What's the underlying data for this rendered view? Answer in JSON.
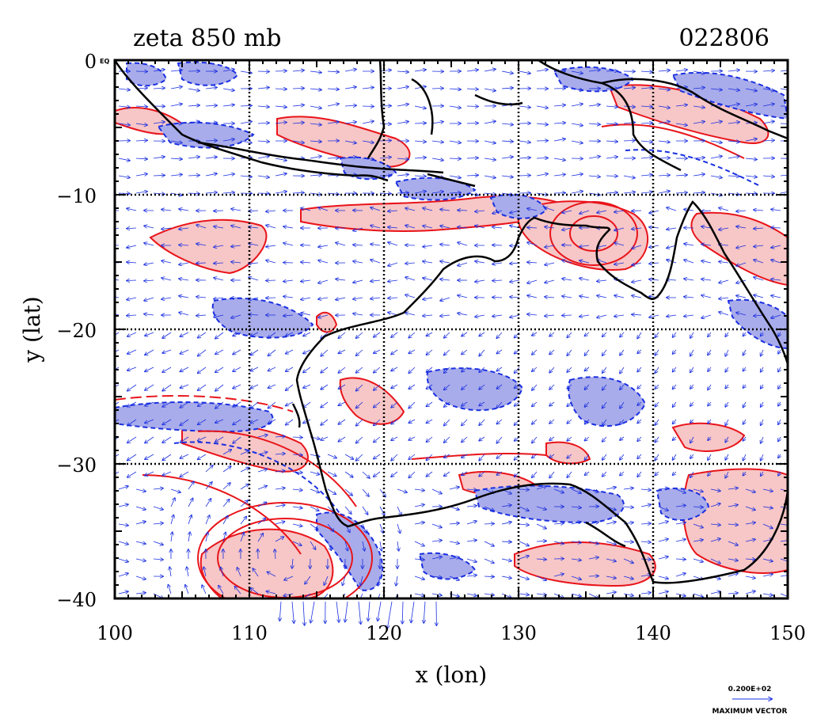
{
  "header": {
    "title": "zeta 850 mb",
    "timestamp": "022806"
  },
  "axes": {
    "xlabel": "x (lon)",
    "ylabel": "y (lat)",
    "x_ticks": [
      "100",
      "110",
      "120",
      "130",
      "140",
      "150"
    ],
    "y_ticks": [
      "0",
      "−10",
      "−20",
      "−30",
      "−40"
    ],
    "corner_label": "EQ"
  },
  "legend": {
    "vector_value": "0.200E+02",
    "vector_label": "MAXIMUM VECTOR"
  },
  "map": {
    "lon_range": [
      100,
      150
    ],
    "lat_range": [
      -40,
      0
    ],
    "gridlines": "dotted, every 10 degrees",
    "colors": {
      "positive_fill": "#f7c6c6",
      "positive_contour": "#e8141a",
      "negative_fill": "#a9acea",
      "negative_contour": "#1a2fe0",
      "vectors": "#1a2fe0",
      "coastline": "#000000"
    }
  }
}
